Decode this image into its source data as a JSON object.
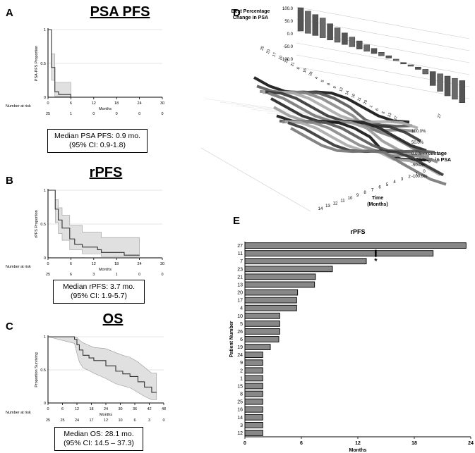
{
  "panels": {
    "A": {
      "letter": "A",
      "title": "PSA PFS",
      "ylabel": "PSA-PFS Proportion",
      "xlabel": "Months",
      "xticks": [
        "0",
        "6",
        "12",
        "18",
        "24",
        "30"
      ],
      "yticks": [
        "0",
        "0.5",
        "1"
      ],
      "risk_label": "Number at risk",
      "risk": [
        "25",
        "1",
        "0",
        "0",
        "0",
        "0"
      ],
      "box_line1": "Median PSA PFS: 0.9 mo.",
      "box_line2": "(95% CI: 0.9-1.8)"
    },
    "B": {
      "letter": "B",
      "title": "rPFS",
      "ylabel": "rPFS Proportion",
      "xlabel": "Months",
      "xticks": [
        "0",
        "6",
        "12",
        "18",
        "24",
        "30"
      ],
      "yticks": [
        "0",
        "0.5",
        "1"
      ],
      "risk_label": "Number at risk",
      "risk": [
        "25",
        "6",
        "3",
        "1",
        "0",
        "0"
      ],
      "box_line1": "Median rPFS: 3.7 mo.",
      "box_line2": "(95% CI: 1.9-5.7)"
    },
    "C": {
      "letter": "C",
      "title": "OS",
      "ylabel": "Proportion Surviving",
      "xlabel": "Months",
      "xticks": [
        "0",
        "6",
        "12",
        "18",
        "24",
        "30",
        "36",
        "42",
        "48"
      ],
      "yticks": [
        "0",
        "0.5",
        "1"
      ],
      "risk_label": "Number at risk",
      "risk": [
        "25",
        "25",
        "24",
        "17",
        "12",
        "10",
        "6",
        "3",
        "0"
      ],
      "box_line1": "Median OS: 28.1 mo.",
      "box_line2": "(95% CI: 14.5 – 37.3)"
    },
    "D": {
      "letter": "D",
      "best_label_1": "Best Percentage",
      "best_label_2": "Change in PSA",
      "best_ticks": [
        "100.0",
        "50.0",
        "0.0",
        "-50.0",
        "-100.0"
      ],
      "best_patients": [
        "25",
        "20",
        "17",
        "10",
        "13",
        "21",
        "6",
        "16",
        "26",
        "4",
        "5",
        "8",
        "9",
        "12",
        "14",
        "10",
        "11",
        "20",
        "1",
        "6",
        "3",
        "23",
        "27"
      ],
      "pct_label_1": "Percentage",
      "pct_label_2": "Change in PSA",
      "pct_ticks": [
        "100.0%",
        "50.0%",
        "0.0%",
        "-50.0%",
        "-100.0%"
      ],
      "time_label_1": "Time",
      "time_label_2": "(Months)",
      "time_ticks": [
        "14",
        "13",
        "12",
        "11",
        "10",
        "9",
        "8",
        "7",
        "6",
        "5",
        "4",
        "3",
        "2",
        "1",
        "0"
      ],
      "side_patients": [
        "27"
      ]
    },
    "E": {
      "letter": "E"
    }
  },
  "chart_data": [
    {
      "type": "line",
      "panel": "A",
      "title": "PSA PFS",
      "xlabel": "Months",
      "ylabel": "PSA-PFS Proportion",
      "xlim": [
        0,
        30
      ],
      "ylim": [
        0,
        1
      ],
      "series": [
        {
          "values": [
            [
              0,
              1
            ],
            [
              0.9,
              1
            ],
            [
              0.9,
              0.44
            ],
            [
              1.8,
              0.44
            ],
            [
              1.8,
              0.08
            ],
            [
              2.8,
              0.08
            ],
            [
              2.8,
              0.04
            ],
            [
              6,
              0.04
            ],
            [
              6,
              0
            ]
          ]
        }
      ],
      "ci_upper": [
        [
          0,
          1
        ],
        [
          0.9,
          1
        ],
        [
          0.9,
          0.64
        ],
        [
          1.8,
          0.64
        ],
        [
          1.8,
          0.22
        ],
        [
          6,
          0.22
        ],
        [
          6,
          0
        ]
      ],
      "ci_lower": [
        [
          0,
          1
        ],
        [
          0.9,
          1
        ],
        [
          0.9,
          0.25
        ],
        [
          1.8,
          0.25
        ],
        [
          1.8,
          0.01
        ],
        [
          6,
          0.01
        ],
        [
          6,
          0
        ]
      ]
    },
    {
      "type": "line",
      "panel": "B",
      "title": "rPFS",
      "xlabel": "Months",
      "ylabel": "rPFS Proportion",
      "xlim": [
        0,
        30
      ],
      "ylim": [
        0,
        1
      ],
      "series": [
        {
          "values": [
            [
              0,
              1
            ],
            [
              1.9,
              1
            ],
            [
              1.9,
              0.72
            ],
            [
              2.7,
              0.72
            ],
            [
              2.7,
              0.56
            ],
            [
              3.7,
              0.56
            ],
            [
              3.7,
              0.44
            ],
            [
              5.7,
              0.44
            ],
            [
              5.7,
              0.28
            ],
            [
              7,
              0.28
            ],
            [
              7,
              0.2
            ],
            [
              9,
              0.2
            ],
            [
              9,
              0.16
            ],
            [
              13,
              0.16
            ],
            [
              13,
              0.12
            ],
            [
              14,
              0.12
            ],
            [
              14,
              0.08
            ],
            [
              20,
              0.08
            ],
            [
              20,
              0.04
            ],
            [
              24,
              0.04
            ]
          ]
        }
      ],
      "ci_upper": [
        [
          0,
          1
        ],
        [
          1.9,
          1
        ],
        [
          1.9,
          0.86
        ],
        [
          2.7,
          0.86
        ],
        [
          2.7,
          0.74
        ],
        [
          3.7,
          0.74
        ],
        [
          3.7,
          0.63
        ],
        [
          5.7,
          0.63
        ],
        [
          5.7,
          0.48
        ],
        [
          9,
          0.48
        ],
        [
          9,
          0.38
        ],
        [
          14,
          0.38
        ],
        [
          14,
          0.3
        ],
        [
          24,
          0.3
        ]
      ],
      "ci_lower": [
        [
          0,
          1
        ],
        [
          1.9,
          1
        ],
        [
          1.9,
          0.52
        ],
        [
          2.7,
          0.52
        ],
        [
          2.7,
          0.36
        ],
        [
          3.7,
          0.36
        ],
        [
          3.7,
          0.26
        ],
        [
          5.7,
          0.26
        ],
        [
          5.7,
          0.12
        ],
        [
          9,
          0.12
        ],
        [
          9,
          0.06
        ],
        [
          14,
          0.06
        ],
        [
          14,
          0.02
        ],
        [
          24,
          0.02
        ]
      ]
    },
    {
      "type": "line",
      "panel": "C",
      "title": "OS",
      "xlabel": "Months",
      "ylabel": "Proportion Surviving",
      "xlim": [
        0,
        48
      ],
      "ylim": [
        0,
        1
      ],
      "series": [
        {
          "values": [
            [
              0,
              1
            ],
            [
              11,
              1
            ],
            [
              11,
              0.96
            ],
            [
              12,
              0.96
            ],
            [
              12,
              0.88
            ],
            [
              13,
              0.88
            ],
            [
              13,
              0.8
            ],
            [
              14.5,
              0.8
            ],
            [
              14.5,
              0.72
            ],
            [
              17,
              0.72
            ],
            [
              17,
              0.68
            ],
            [
              19,
              0.68
            ],
            [
              19,
              0.64
            ],
            [
              24,
              0.64
            ],
            [
              24,
              0.56
            ],
            [
              28.1,
              0.56
            ],
            [
              28.1,
              0.48
            ],
            [
              31,
              0.48
            ],
            [
              31,
              0.44
            ],
            [
              34,
              0.44
            ],
            [
              34,
              0.4
            ],
            [
              37.3,
              0.4
            ],
            [
              37.3,
              0.32
            ],
            [
              40,
              0.32
            ],
            [
              40,
              0.24
            ],
            [
              43,
              0.24
            ],
            [
              43,
              0.16
            ],
            [
              45,
              0.16
            ]
          ]
        }
      ],
      "ci_upper": [
        [
          0,
          1
        ],
        [
          11,
          1
        ],
        [
          12,
          0.99
        ],
        [
          13,
          0.95
        ],
        [
          14.5,
          0.91
        ],
        [
          17,
          0.87
        ],
        [
          19,
          0.84
        ],
        [
          24,
          0.82
        ],
        [
          28.1,
          0.76
        ],
        [
          31,
          0.72
        ],
        [
          34,
          0.69
        ],
        [
          37.3,
          0.62
        ],
        [
          40,
          0.54
        ],
        [
          43,
          0.45
        ],
        [
          45,
          0.45
        ]
      ],
      "ci_lower": [
        [
          0,
          1
        ],
        [
          11,
          0.9
        ],
        [
          12,
          0.75
        ],
        [
          13,
          0.62
        ],
        [
          14.5,
          0.53
        ],
        [
          17,
          0.49
        ],
        [
          19,
          0.45
        ],
        [
          24,
          0.37
        ],
        [
          28.1,
          0.29
        ],
        [
          31,
          0.26
        ],
        [
          34,
          0.23
        ],
        [
          37.3,
          0.16
        ],
        [
          40,
          0.1
        ],
        [
          43,
          0.05
        ],
        [
          45,
          0.05
        ]
      ]
    },
    {
      "type": "bar",
      "panel": "E",
      "orientation": "horizontal",
      "title": "rPFS",
      "xlabel": "Months",
      "ylabel": "Patient  Number",
      "xlim": [
        0,
        24
      ],
      "xticks": [
        "0",
        "6",
        "12",
        "18",
        "24"
      ],
      "categories": [
        "27",
        "11",
        "7",
        "23",
        "21",
        "13",
        "20",
        "17",
        "4",
        "10",
        "5",
        "26",
        "6",
        "19",
        "24",
        "9",
        "2",
        "1",
        "15",
        "8",
        "25",
        "16",
        "14",
        "3",
        "12"
      ],
      "values": [
        23.5,
        20,
        12.9,
        9.3,
        7.5,
        7.4,
        5.6,
        5.5,
        5.5,
        3.7,
        3.7,
        3.7,
        3.6,
        2.7,
        1.9,
        1.9,
        1.9,
        1.9,
        1.9,
        1.9,
        1.9,
        1.9,
        1.9,
        1.9,
        1.9
      ],
      "marker_patient": "11",
      "marker_month": 13.9,
      "asterisk": "*"
    }
  ]
}
